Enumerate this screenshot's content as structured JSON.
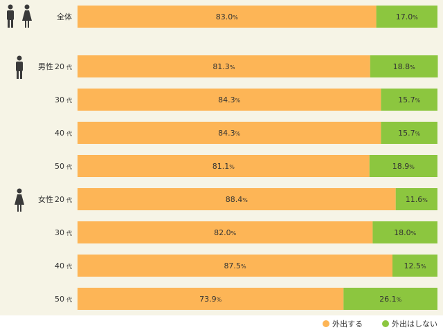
{
  "chart_data": {
    "type": "bar",
    "orientation": "horizontal",
    "stacked": true,
    "xlim": [
      0,
      100
    ],
    "grid": false,
    "legend_position": "bottom-right",
    "series": [
      {
        "name": "外出する",
        "color": "#fdb556",
        "values": [
          83.0,
          81.3,
          84.3,
          84.3,
          81.1,
          88.4,
          82.0,
          87.5,
          73.9
        ]
      },
      {
        "name": "外出はしない",
        "color": "#8cc63f",
        "values": [
          17.0,
          18.8,
          15.7,
          15.7,
          18.9,
          11.6,
          18.0,
          12.5,
          26.1
        ]
      }
    ],
    "rows": [
      {
        "group": "",
        "label": "全体",
        "unit": ""
      },
      {
        "group": "男性",
        "label": "20",
        "unit": "代"
      },
      {
        "group": "",
        "label": "30",
        "unit": "代"
      },
      {
        "group": "",
        "label": "40",
        "unit": "代"
      },
      {
        "group": "",
        "label": "50",
        "unit": "代"
      },
      {
        "group": "女性",
        "label": "20",
        "unit": "代"
      },
      {
        "group": "",
        "label": "30",
        "unit": "代"
      },
      {
        "group": "",
        "label": "40",
        "unit": "代"
      },
      {
        "group": "",
        "label": "50",
        "unit": "代"
      }
    ],
    "value_unit": "%",
    "icons": [
      "couple-icon",
      "male-icon",
      "female-icon"
    ]
  }
}
